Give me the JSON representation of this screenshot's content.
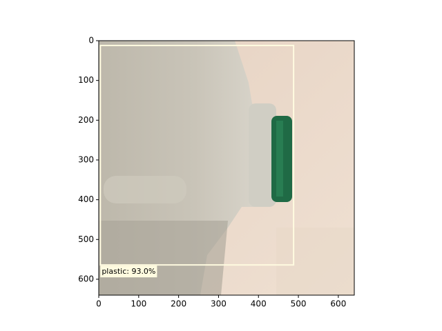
{
  "chart_data": {
    "type": "image",
    "xlim": [
      0,
      640
    ],
    "ylim": [
      640,
      0
    ],
    "xticks": [
      0,
      100,
      200,
      300,
      400,
      500,
      600
    ],
    "yticks": [
      0,
      100,
      200,
      300,
      400,
      500,
      600
    ],
    "boxes": [
      {
        "label": "plastic: 93.0%",
        "x0": 4,
        "y0": 12,
        "x1": 488,
        "y1": 564,
        "color": "#fffbe0"
      }
    ]
  }
}
